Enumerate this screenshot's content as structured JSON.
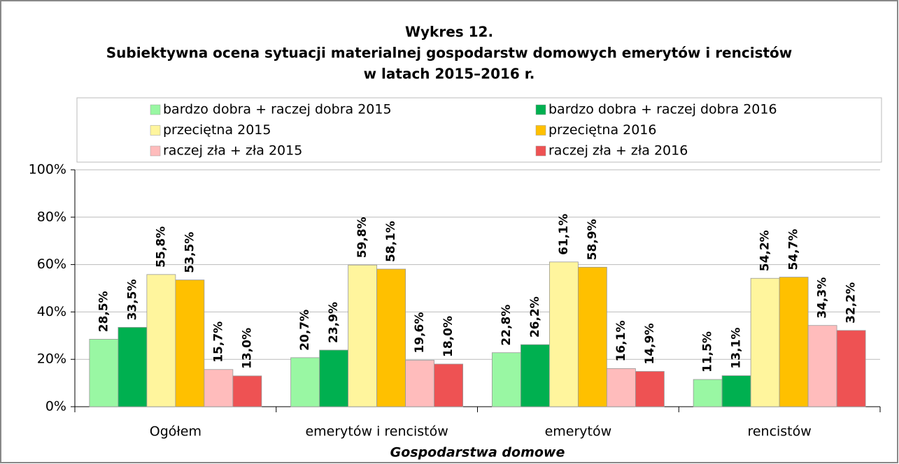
{
  "chart_data": {
    "type": "bar",
    "title_lines": [
      "Wykres 12.",
      "Subiektywna ocena sytuacji materialnej gospodarstw domowych emerytów i rencistów",
      "w latach 2015–2016 r."
    ],
    "x_label": "Gospodarstwa domowe",
    "categories": [
      "Ogółem",
      "emerytów i rencistów",
      "emerytów",
      "rencistów"
    ],
    "series": [
      {
        "name": "bardzo dobra + raczej dobra 2015",
        "color": "#99f7a3",
        "values": [
          28.5,
          20.7,
          22.8,
          11.5
        ],
        "value_labels": [
          "28,5%",
          "20,7%",
          "22,8%",
          "11,5%"
        ]
      },
      {
        "name": "bardzo dobra + raczej dobra 2016",
        "color": "#00b050",
        "values": [
          33.5,
          23.9,
          26.2,
          13.1
        ],
        "value_labels": [
          "33,5%",
          "23,9%",
          "26,2%",
          "13,1%"
        ]
      },
      {
        "name": "przeciętna 2015",
        "color": "#fff59d",
        "values": [
          55.8,
          59.8,
          61.1,
          54.2
        ],
        "value_labels": [
          "55,8%",
          "59,8%",
          "61,1%",
          "54,2%"
        ]
      },
      {
        "name": "przeciętna 2016",
        "color": "#ffc000",
        "values": [
          53.5,
          58.1,
          58.9,
          54.7
        ],
        "value_labels": [
          "53,5%",
          "58,1%",
          "58,9%",
          "54,7%"
        ]
      },
      {
        "name": "raczej zła + zła 2015",
        "color": "#ffbcbc",
        "values": [
          15.7,
          19.6,
          16.1,
          34.3
        ],
        "value_labels": [
          "15,7%",
          "19,6%",
          "16,1%",
          "34,3%"
        ]
      },
      {
        "name": "raczej zła + zła 2016",
        "color": "#ee5253",
        "values": [
          13.0,
          18.0,
          14.9,
          32.2
        ],
        "value_labels": [
          "13,0%",
          "18,0%",
          "14,9%",
          "32,2%"
        ]
      }
    ],
    "ylim": [
      0,
      100
    ],
    "yticks": [
      {
        "value": 0,
        "label": "0%"
      },
      {
        "value": 20,
        "label": "20%"
      },
      {
        "value": 40,
        "label": "40%"
      },
      {
        "value": 60,
        "label": "60%"
      },
      {
        "value": 80,
        "label": "80%"
      },
      {
        "value": 100,
        "label": "100%"
      }
    ],
    "grid": true,
    "legend": "top"
  }
}
